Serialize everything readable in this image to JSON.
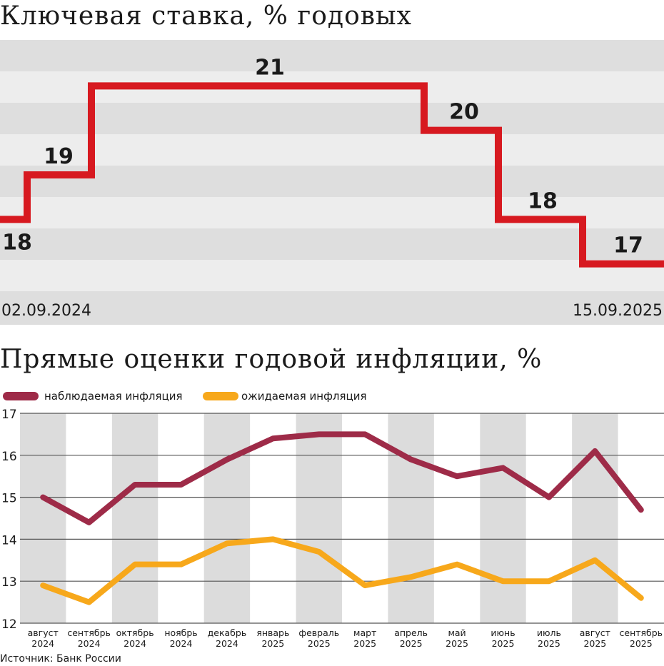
{
  "chart_data": [
    {
      "type": "line",
      "subtype": "step",
      "title": "Ключевая ставка, % годовых",
      "x_start_label": "02.09.2024",
      "x_end_label": "15.09.2025",
      "ylim": [
        16,
        22
      ],
      "series": [
        {
          "color": "#d71920",
          "steps": [
            {
              "value": 18,
              "label": "18"
            },
            {
              "value": 19,
              "label": "19"
            },
            {
              "value": 21,
              "label": "21"
            },
            {
              "value": 20,
              "label": "20"
            },
            {
              "value": 18,
              "label": "18"
            },
            {
              "value": 17,
              "label": "17"
            }
          ]
        }
      ],
      "grid": "alternating-bands"
    },
    {
      "type": "line",
      "title": "Прямые оценки годовой инфляции, %",
      "categories": [
        [
          "август",
          "2024"
        ],
        [
          "сентябрь",
          "2024"
        ],
        [
          "октябрь",
          "2024"
        ],
        [
          "ноябрь",
          "2024"
        ],
        [
          "декабрь",
          "2024"
        ],
        [
          "январь",
          "2025"
        ],
        [
          "февраль",
          "2025"
        ],
        [
          "март",
          "2025"
        ],
        [
          "апрель",
          "2025"
        ],
        [
          "май",
          "2025"
        ],
        [
          "июнь",
          "2025"
        ],
        [
          "июль",
          "2025"
        ],
        [
          "август",
          "2025"
        ],
        [
          "сентябрь",
          "2025"
        ]
      ],
      "yticks": [
        "12",
        "13",
        "14",
        "15",
        "16",
        "17"
      ],
      "ylim": [
        12,
        17
      ],
      "legend_position": "top-left",
      "series": [
        {
          "name": "наблюдаемая инфляция",
          "color": "#9e2b48",
          "values": [
            15.0,
            14.4,
            15.3,
            15.3,
            15.9,
            16.4,
            16.5,
            16.5,
            15.9,
            15.5,
            15.7,
            15.0,
            16.1,
            14.7
          ]
        },
        {
          "name": "ожидаемая инфляция",
          "color": "#f7a81b",
          "values": [
            12.9,
            12.5,
            13.4,
            13.4,
            13.9,
            14.0,
            13.7,
            12.9,
            13.1,
            13.4,
            13.0,
            13.0,
            13.5,
            12.6
          ]
        }
      ],
      "grid": "horizontal lines, alternating column bands"
    }
  ],
  "source": "Источник: Банк России"
}
